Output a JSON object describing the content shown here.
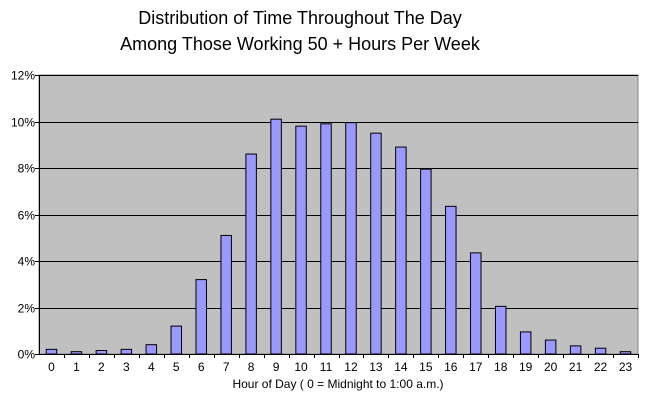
{
  "chart_data": {
    "type": "bar",
    "title_lines": [
      "Distribution of Time Throughout The Day",
      "Among Those Working 50 + Hours Per Week"
    ],
    "xlabel": "Hour of Day ( 0 = Midnight to 1:00 a.m.)",
    "ylabel": "",
    "categories": [
      "0",
      "1",
      "2",
      "3",
      "4",
      "5",
      "6",
      "7",
      "8",
      "9",
      "10",
      "11",
      "12",
      "13",
      "14",
      "15",
      "16",
      "17",
      "18",
      "19",
      "20",
      "21",
      "22",
      "23"
    ],
    "values": [
      0.2,
      0.1,
      0.15,
      0.2,
      0.4,
      1.2,
      3.2,
      5.1,
      8.6,
      10.1,
      9.8,
      9.9,
      9.95,
      9.5,
      8.9,
      7.95,
      6.35,
      4.35,
      2.05,
      0.95,
      0.6,
      0.35,
      0.25,
      0.1
    ],
    "ylim": [
      0,
      12
    ],
    "y_ticks": [
      0,
      2,
      4,
      6,
      8,
      10,
      12
    ],
    "y_tick_labels": [
      "0%",
      "2%",
      "4%",
      "6%",
      "8%",
      "10%",
      "12%"
    ],
    "grid": true,
    "legend": "none",
    "colors": {
      "plot_background": "#c0c0c0",
      "bar_fill": "#9999ff",
      "bar_stroke": "#000000",
      "grid": "#000000",
      "page_background": "#ffffff"
    }
  }
}
